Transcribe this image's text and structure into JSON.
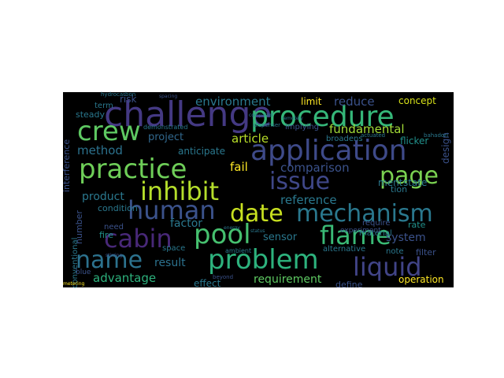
{
  "background": "#000000",
  "palette": [
    "#440154",
    "#3b528b",
    "#21918c",
    "#5ec962",
    "#fde725"
  ],
  "words": [
    {
      "text": "challenge",
      "weight": 1.0,
      "color": "#443983"
    },
    {
      "text": "procedure",
      "weight": 0.95,
      "color": "#35b779"
    },
    {
      "text": "application",
      "weight": 1.0,
      "color": "#3e4a89"
    },
    {
      "text": "crew",
      "weight": 0.95,
      "color": "#5ec962"
    },
    {
      "text": "practice",
      "weight": 0.95,
      "color": "#6ece58"
    },
    {
      "text": "page",
      "weight": 0.9,
      "color": "#7ad151"
    },
    {
      "text": "issue",
      "weight": 0.9,
      "color": "#3f4788"
    },
    {
      "text": "inhibit",
      "weight": 0.9,
      "color": "#b5de2b"
    },
    {
      "text": "human",
      "weight": 0.85,
      "color": "#3b528b"
    },
    {
      "text": "date",
      "weight": 0.9,
      "color": "#c8e020"
    },
    {
      "text": "mechanism",
      "weight": 0.9,
      "color": "#2a788e"
    },
    {
      "text": "cabin",
      "weight": 0.9,
      "color": "#482878"
    },
    {
      "text": "pool",
      "weight": 0.9,
      "color": "#46c06f"
    },
    {
      "text": "flame",
      "weight": 0.9,
      "color": "#3aba76"
    },
    {
      "text": "name",
      "weight": 0.85,
      "color": "#2c728e"
    },
    {
      "text": "problem",
      "weight": 0.95,
      "color": "#2db27d"
    },
    {
      "text": "liquid",
      "weight": 0.85,
      "color": "#414487"
    },
    {
      "text": "environment",
      "weight": 0.45,
      "color": "#2a788e"
    },
    {
      "text": "reduce",
      "weight": 0.45,
      "color": "#3b528b"
    },
    {
      "text": "concept",
      "weight": 0.35,
      "color": "#d8e219"
    },
    {
      "text": "limit",
      "weight": 0.35,
      "color": "#fde725"
    },
    {
      "text": "fundamental",
      "weight": 0.45,
      "color": "#a2da37"
    },
    {
      "text": "project",
      "weight": 0.4,
      "color": "#31688e"
    },
    {
      "text": "method",
      "weight": 0.45,
      "color": "#2c728e"
    },
    {
      "text": "article",
      "weight": 0.4,
      "color": "#b8de29"
    },
    {
      "text": "fail",
      "weight": 0.4,
      "color": "#fde725"
    },
    {
      "text": "comparison",
      "weight": 0.4,
      "color": "#3b528b"
    },
    {
      "text": "anticipate",
      "weight": 0.35,
      "color": "#2a788e"
    },
    {
      "text": "reference",
      "weight": 0.4,
      "color": "#2a788e"
    },
    {
      "text": "product",
      "weight": 0.35,
      "color": "#2a788e"
    },
    {
      "text": "factor",
      "weight": 0.4,
      "color": "#2a788e"
    },
    {
      "text": "sensor",
      "weight": 0.35,
      "color": "#2a788e"
    },
    {
      "text": "system",
      "weight": 0.35,
      "color": "#3b528b"
    },
    {
      "text": "result",
      "weight": 0.35,
      "color": "#2c728e"
    },
    {
      "text": "advantage",
      "weight": 0.4,
      "color": "#2db27d"
    },
    {
      "text": "requirement",
      "weight": 0.35,
      "color": "#5ec962"
    },
    {
      "text": "effect",
      "weight": 0.3,
      "color": "#2a788e"
    },
    {
      "text": "define",
      "weight": 0.28,
      "color": "#3b528b"
    },
    {
      "text": "operation",
      "weight": 0.3,
      "color": "#fde725"
    },
    {
      "text": "risk",
      "weight": 0.3,
      "color": "#3b528b"
    },
    {
      "text": "term",
      "weight": 0.28,
      "color": "#2a788e"
    },
    {
      "text": "steady",
      "weight": 0.28,
      "color": "#2a788e"
    },
    {
      "text": "condition",
      "weight": 0.28,
      "color": "#2a788e"
    },
    {
      "text": "need",
      "weight": 0.25,
      "color": "#3b528b"
    },
    {
      "text": "space",
      "weight": 0.25,
      "color": "#2a788e"
    },
    {
      "text": "fire",
      "weight": 0.25,
      "color": "#21918c"
    },
    {
      "text": "number",
      "weight": 0.25,
      "color": "#3b528b"
    },
    {
      "text": "design",
      "weight": 0.25,
      "color": "#3b528b"
    },
    {
      "text": "flicker",
      "weight": 0.25,
      "color": "#21918c"
    },
    {
      "text": "broadens",
      "weight": 0.22,
      "color": "#2a788e"
    },
    {
      "text": "rate",
      "weight": 0.24,
      "color": "#21918c"
    },
    {
      "text": "note",
      "weight": 0.22,
      "color": "#2a788e"
    },
    {
      "text": "filter",
      "weight": 0.22,
      "color": "#3b528b"
    },
    {
      "text": "alternative",
      "weight": 0.22,
      "color": "#2a788e"
    },
    {
      "text": "material",
      "weight": 0.22,
      "color": "#2a788e"
    },
    {
      "text": "require",
      "weight": 0.22,
      "color": "#3b528b"
    },
    {
      "text": "implying",
      "weight": 0.22,
      "color": "#3b528b"
    },
    {
      "text": "conventional",
      "weight": 0.22,
      "color": "#2a788e"
    },
    {
      "text": "blue",
      "weight": 0.2,
      "color": "#3b528b"
    },
    {
      "text": "state",
      "weight": 0.22,
      "color": "#2a788e"
    },
    {
      "text": "interference",
      "weight": 0.22,
      "color": "#3b528b"
    },
    {
      "text": "demonstrated",
      "weight": 0.18,
      "color": "#2a788e"
    },
    {
      "text": "dispenser",
      "weight": 0.16,
      "color": "#2a788e"
    },
    {
      "text": "experiment",
      "weight": 0.18,
      "color": "#3b528b"
    },
    {
      "text": "ambient",
      "weight": 0.16,
      "color": "#2a788e"
    },
    {
      "text": "hydrocarbon",
      "weight": 0.14,
      "color": "#2a788e"
    },
    {
      "text": "spacing",
      "weight": 0.12,
      "color": "#3b528b"
    },
    {
      "text": "remotely",
      "weight": 0.12,
      "color": "#2a788e"
    },
    {
      "text": "metering",
      "weight": 0.12,
      "color": "#fde725"
    },
    {
      "text": "bahadori",
      "weight": 0.12,
      "color": "#2a788e"
    },
    {
      "text": "actuated",
      "weight": 0.12,
      "color": "#2a788e"
    },
    {
      "text": "beyond",
      "weight": 0.12,
      "color": "#3b528b"
    },
    {
      "text": "compared",
      "weight": 0.12,
      "color": "#2a788e"
    },
    {
      "text": "stirring",
      "weight": 0.12,
      "color": "#3b528b"
    },
    {
      "text": "energy",
      "weight": 0.12,
      "color": "#2a788e"
    },
    {
      "text": "status",
      "weight": 0.12,
      "color": "#2a788e"
    },
    {
      "text": "tion",
      "weight": 0.22,
      "color": "#2a788e"
    },
    {
      "text": "ment",
      "weight": 0.22,
      "color": "#2a788e"
    }
  ]
}
